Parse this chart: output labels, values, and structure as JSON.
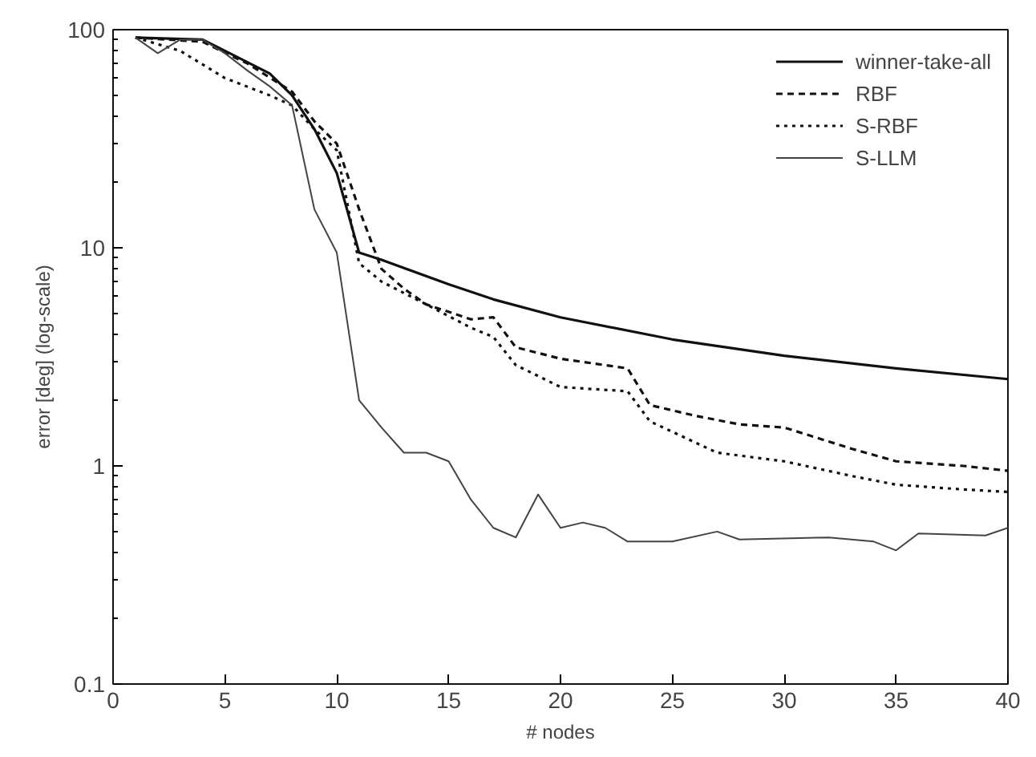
{
  "chart_data": {
    "type": "line",
    "xlabel": "# nodes",
    "ylabel": "error [deg] (log-scale)",
    "log": "y",
    "grid": false,
    "legend": "top right",
    "marker": "none",
    "xlim": [
      0,
      40
    ],
    "ylim": [
      0.1,
      100
    ],
    "xticks": [
      0,
      5,
      10,
      15,
      20,
      25,
      30,
      35,
      40
    ],
    "yticks": [
      0.1,
      1,
      10,
      100
    ],
    "series": [
      {
        "name": "winner-take-all",
        "color": "#111111",
        "line_style": "solid",
        "x": [
          1,
          4,
          5,
          7,
          8,
          9,
          10,
          11,
          12,
          15,
          17,
          20,
          25,
          30,
          35,
          40
        ],
        "values": [
          92,
          90,
          80,
          63,
          50,
          35,
          22,
          9.5,
          8.8,
          6.8,
          5.8,
          4.8,
          3.8,
          3.2,
          2.8,
          2.5
        ]
      },
      {
        "name": "RBF",
        "color": "#111111",
        "line_style": "dashed",
        "x": [
          1,
          4,
          6,
          8,
          9,
          10,
          11,
          12,
          13,
          14,
          16,
          17,
          18,
          20,
          23,
          24,
          26,
          28,
          30,
          33,
          35,
          38,
          40
        ],
        "values": [
          92,
          88,
          70,
          52,
          38,
          30,
          15,
          8,
          6.5,
          5.5,
          4.7,
          4.8,
          3.5,
          3.1,
          2.8,
          1.9,
          1.7,
          1.55,
          1.5,
          1.2,
          1.05,
          1.0,
          0.95
        ]
      },
      {
        "name": "S-RBF",
        "color": "#111111",
        "line_style": "dotted",
        "x": [
          1,
          3,
          5,
          7,
          8,
          9,
          10,
          11,
          12,
          14,
          16,
          17,
          18,
          20,
          23,
          24,
          27,
          30,
          33,
          35,
          38,
          40
        ],
        "values": [
          92,
          80,
          60,
          50,
          45,
          35,
          28,
          8.5,
          7,
          5.5,
          4.3,
          3.9,
          2.9,
          2.3,
          2.2,
          1.6,
          1.15,
          1.05,
          0.9,
          0.82,
          0.78,
          0.76
        ]
      },
      {
        "name": "S-LLM",
        "color": "#444444",
        "line_style": "solid",
        "x": [
          1,
          2,
          3,
          4,
          5,
          6,
          7,
          8,
          9,
          10,
          11,
          12,
          13,
          14,
          15,
          16,
          17,
          18,
          19,
          20,
          21,
          22,
          23,
          25,
          27,
          28,
          32,
          34,
          35,
          36,
          39,
          40
        ],
        "values": [
          92,
          78,
          90,
          90,
          78,
          65,
          55,
          45,
          15,
          9.5,
          2,
          1.5,
          1.15,
          1.15,
          1.05,
          0.7,
          0.52,
          0.47,
          0.74,
          0.52,
          0.55,
          0.52,
          0.45,
          0.45,
          0.5,
          0.46,
          0.47,
          0.45,
          0.41,
          0.49,
          0.48,
          0.52
        ]
      }
    ]
  }
}
